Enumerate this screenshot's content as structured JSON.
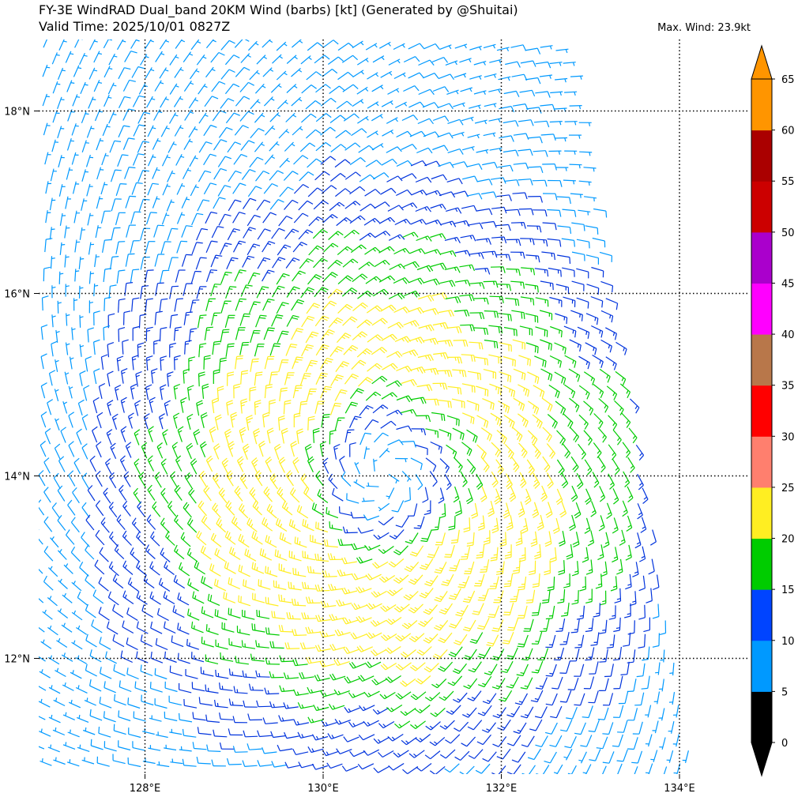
{
  "title": {
    "line1": "FY-3E WindRAD Dual_band 20KM Wind (barbs) [kt] (Generated by @Shuitai)",
    "line2": "Valid Time: 2025/10/01 0827Z"
  },
  "max_wind": "Max. Wind: 23.9kt",
  "lon_ticks": [
    "128°E",
    "130°E",
    "132°E",
    "134°E"
  ],
  "lat_ticks": [
    "18°N",
    "16°N",
    "14°N",
    "12°N"
  ],
  "colorbar": {
    "labels": [
      "0",
      "5",
      "10",
      "15",
      "20",
      "25",
      "30",
      "35",
      "40",
      "45",
      "50",
      "55",
      "60",
      "65"
    ],
    "colors": [
      "#000000",
      "#0099ff",
      "#0044ff",
      "#00cc00",
      "#ffee22",
      "#ff7f6e",
      "#ff0000",
      "#b8774a",
      "#ff00ff",
      "#aa00cc",
      "#cc0000",
      "#aa0000",
      "#ff9500"
    ]
  },
  "barb_colors": {
    "5-10": "#0099ff",
    "10-15": "#0033dd",
    "15-20": "#00cc00",
    "20-25": "#ffee22"
  },
  "wind_field": {
    "center_lon": 130.7,
    "center_lat": 14.0,
    "max_kt": 23.9,
    "extent": {
      "lon": [
        126.8,
        134.3
      ],
      "lat": [
        10.8,
        18.8
      ]
    }
  }
}
